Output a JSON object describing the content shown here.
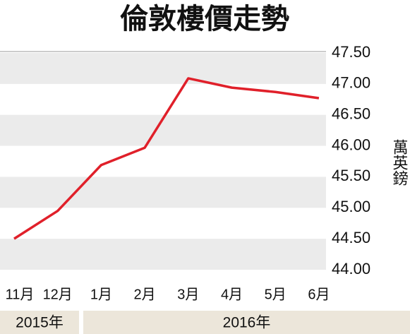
{
  "chart_data": {
    "type": "line",
    "title": "倫敦樓價走勢",
    "y_label": "萬英鎊",
    "categories": [
      "11月",
      "12月",
      "1月",
      "2月",
      "3月",
      "4月",
      "5月",
      "6月"
    ],
    "values": [
      44.5,
      44.95,
      45.69,
      45.97,
      47.09,
      46.94,
      46.87,
      46.77
    ],
    "color": "#e0202a",
    "year_labels": [
      "2015年",
      "2016年"
    ],
    "ylim": [
      44,
      47.5
    ],
    "yticks": [
      {
        "value": 44,
        "label": "44.00"
      },
      {
        "value": 44.5,
        "label": "44.50"
      },
      {
        "value": 45,
        "label": "45.00"
      },
      {
        "value": 45.5,
        "label": "45.50"
      },
      {
        "value": 46,
        "label": "46.00"
      },
      {
        "value": 46.5,
        "label": "46.50"
      },
      {
        "value": 47,
        "label": "47.00"
      },
      {
        "value": 47.5,
        "label": "47.50"
      }
    ],
    "grid": true
  }
}
